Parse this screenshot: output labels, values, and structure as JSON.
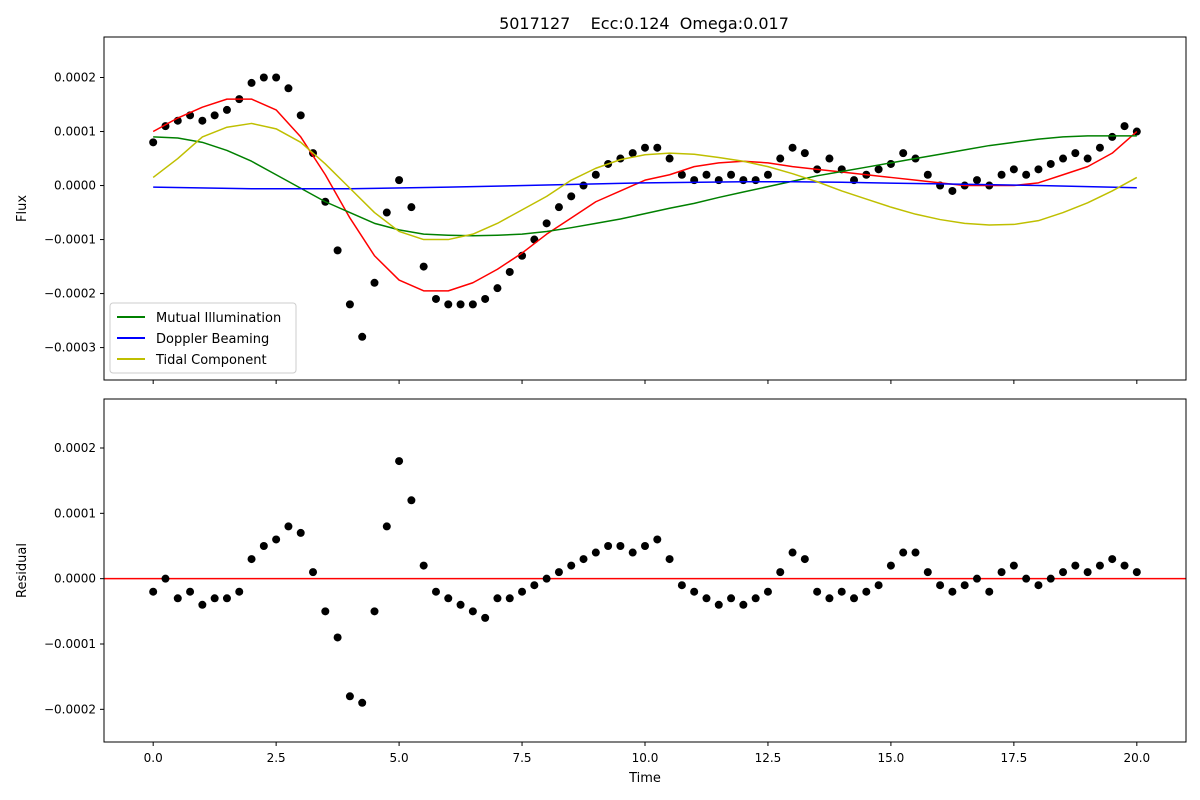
{
  "figure": {
    "title": "5017127    Ecc:0.124  Omega:0.017"
  },
  "chart_data": [
    {
      "type": "scatter",
      "panel": "top",
      "xlabel": "",
      "ylabel": "Flux",
      "xlim": [
        -1.0,
        21.0
      ],
      "ylim": [
        -0.00036,
        0.000275
      ],
      "grid": false,
      "legend_placement": "lower-left",
      "xticks": [
        0.0,
        2.5,
        5.0,
        7.5,
        10.0,
        12.5,
        15.0,
        17.5,
        20.0
      ],
      "xtick_labels_visible": false,
      "yticks": [
        -0.0003,
        -0.0002,
        -0.0001,
        0.0,
        0.0001,
        0.0002
      ],
      "ytick_labels": [
        "−0.0003",
        "−0.0002",
        "−0.0001",
        "0.0000",
        "0.0001",
        "0.0002"
      ],
      "data_color": "#000000",
      "data_points": {
        "x": [
          0.0,
          0.25,
          0.5,
          0.75,
          1.0,
          1.25,
          1.5,
          1.75,
          2.0,
          2.25,
          2.5,
          2.75,
          3.0,
          3.25,
          3.5,
          3.75,
          4.0,
          4.25,
          4.5,
          4.75,
          5.0,
          5.25,
          5.5,
          5.75,
          6.0,
          6.25,
          6.5,
          6.75,
          7.0,
          7.25,
          7.5,
          7.75,
          8.0,
          8.25,
          8.5,
          8.75,
          9.0,
          9.25,
          9.5,
          9.75,
          10.0,
          10.25,
          10.5,
          10.75,
          11.0,
          11.25,
          11.5,
          11.75,
          12.0,
          12.25,
          12.5,
          12.75,
          13.0,
          13.25,
          13.5,
          13.75,
          14.0,
          14.25,
          14.5,
          14.75,
          15.0,
          15.25,
          15.5,
          15.75,
          16.0,
          16.25,
          16.5,
          16.75,
          17.0,
          17.25,
          17.5,
          17.75,
          18.0,
          18.25,
          18.5,
          18.75,
          19.0,
          19.25,
          19.5,
          19.75,
          20.0
        ],
        "y": [
          8e-05,
          0.00011,
          0.00012,
          0.00013,
          0.00012,
          0.00013,
          0.00014,
          0.00016,
          0.00019,
          0.0002,
          0.0002,
          0.00018,
          0.00013,
          6e-05,
          -3e-05,
          -0.00012,
          -0.00022,
          -0.00028,
          -0.00018,
          -5e-05,
          1e-05,
          -4e-05,
          -0.00015,
          -0.00021,
          -0.00022,
          -0.00022,
          -0.00022,
          -0.00021,
          -0.00019,
          -0.00016,
          -0.00013,
          -0.0001,
          -7e-05,
          -4e-05,
          -2e-05,
          0.0,
          2e-05,
          4e-05,
          5e-05,
          6e-05,
          7e-05,
          7e-05,
          5e-05,
          2e-05,
          1e-05,
          2e-05,
          1e-05,
          2e-05,
          1e-05,
          1e-05,
          2e-05,
          5e-05,
          7e-05,
          6e-05,
          3e-05,
          5e-05,
          3e-05,
          1e-05,
          2e-05,
          3e-05,
          4e-05,
          6e-05,
          5e-05,
          2e-05,
          0.0,
          -1e-05,
          0.0,
          1e-05,
          0.0,
          2e-05,
          3e-05,
          2e-05,
          3e-05,
          4e-05,
          5e-05,
          6e-05,
          5e-05,
          7e-05,
          9e-05,
          0.00011,
          0.0001
        ]
      },
      "series": [
        {
          "name": "",
          "color": "#ff0000",
          "x": [
            0.0,
            0.5,
            1.0,
            1.5,
            2.0,
            2.5,
            3.0,
            3.5,
            4.0,
            4.5,
            5.0,
            5.5,
            6.0,
            6.5,
            7.0,
            7.5,
            8.0,
            8.5,
            9.0,
            9.5,
            10.0,
            10.5,
            11.0,
            11.5,
            12.0,
            12.5,
            13.0,
            13.5,
            14.0,
            14.5,
            15.0,
            15.5,
            16.0,
            16.5,
            17.0,
            17.5,
            18.0,
            18.5,
            19.0,
            19.5,
            20.0
          ],
          "y": [
            0.0001,
            0.000125,
            0.000145,
            0.00016,
            0.00016,
            0.00014,
            9e-05,
            2e-05,
            -6e-05,
            -0.00013,
            -0.000175,
            -0.000195,
            -0.000195,
            -0.00018,
            -0.000155,
            -0.000125,
            -9e-05,
            -6e-05,
            -3e-05,
            -1e-05,
            1e-05,
            2e-05,
            3.5e-05,
            4.2e-05,
            4.5e-05,
            4.2e-05,
            3.5e-05,
            3e-05,
            2.5e-05,
            2e-05,
            1.5e-05,
            1e-05,
            5e-06,
            0.0,
            0.0,
            0.0,
            5e-06,
            2e-05,
            3.5e-05,
            6e-05,
            0.0001
          ]
        },
        {
          "name": "Mutual Illumination",
          "color": "#008000",
          "x": [
            0.0,
            0.5,
            1.0,
            1.5,
            2.0,
            2.5,
            3.0,
            3.5,
            4.0,
            4.5,
            5.0,
            5.5,
            6.0,
            6.5,
            7.0,
            7.5,
            8.0,
            8.5,
            9.0,
            9.5,
            10.0,
            10.5,
            11.0,
            11.5,
            12.0,
            12.5,
            13.0,
            13.5,
            14.0,
            14.5,
            15.0,
            15.5,
            16.0,
            16.5,
            17.0,
            17.5,
            18.0,
            18.5,
            19.0,
            19.5,
            20.0
          ],
          "y": [
            9e-05,
            8.8e-05,
            8e-05,
            6.5e-05,
            4.5e-05,
            2e-05,
            -5e-06,
            -3e-05,
            -5e-05,
            -7e-05,
            -8.2e-05,
            -9e-05,
            -9.2e-05,
            -9.3e-05,
            -9.2e-05,
            -9e-05,
            -8.5e-05,
            -7.8e-05,
            -7e-05,
            -6.2e-05,
            -5.2e-05,
            -4.2e-05,
            -3.3e-05,
            -2.2e-05,
            -1.2e-05,
            -2e-06,
            8e-06,
            1.8e-05,
            2.6e-05,
            3.4e-05,
            4.2e-05,
            5e-05,
            5.8e-05,
            6.6e-05,
            7.4e-05,
            8e-05,
            8.6e-05,
            9e-05,
            9.2e-05,
            9.2e-05,
            9.2e-05
          ]
        },
        {
          "name": "Doppler Beaming",
          "color": "#0000ff",
          "x": [
            0.0,
            2.0,
            4.0,
            6.0,
            8.0,
            10.0,
            12.0,
            13.0,
            14.0,
            16.0,
            18.0,
            20.0
          ],
          "y": [
            -3e-06,
            -6e-06,
            -6e-06,
            -3e-06,
            1e-06,
            5e-06,
            7e-06,
            7e-06,
            6e-06,
            3e-06,
            0.0,
            -4e-06
          ]
        },
        {
          "name": "Tidal Component",
          "color": "#bfbf00",
          "x": [
            0.0,
            0.5,
            1.0,
            1.5,
            2.0,
            2.5,
            3.0,
            3.5,
            4.0,
            4.5,
            5.0,
            5.5,
            6.0,
            6.5,
            7.0,
            7.5,
            8.0,
            8.5,
            9.0,
            9.5,
            10.0,
            10.5,
            11.0,
            11.5,
            12.0,
            12.5,
            13.0,
            13.5,
            14.0,
            14.5,
            15.0,
            15.5,
            16.0,
            16.5,
            17.0,
            17.5,
            18.0,
            18.5,
            19.0,
            19.5,
            20.0
          ],
          "y": [
            1.5e-05,
            5e-05,
            9e-05,
            0.000108,
            0.000115,
            0.000105,
            8e-05,
            4e-05,
            -5e-06,
            -5e-05,
            -8.5e-05,
            -0.0001,
            -0.0001,
            -9e-05,
            -7e-05,
            -4.5e-05,
            -2e-05,
            1e-05,
            3.2e-05,
            4.8e-05,
            5.7e-05,
            6e-05,
            5.8e-05,
            5.2e-05,
            4.5e-05,
            3.5e-05,
            2.2e-05,
            7e-06,
            -1e-05,
            -2.5e-05,
            -4e-05,
            -5.3e-05,
            -6.3e-05,
            -7e-05,
            -7.3e-05,
            -7.2e-05,
            -6.5e-05,
            -5e-05,
            -3.2e-05,
            -1e-05,
            1.5e-05
          ]
        }
      ]
    },
    {
      "type": "scatter",
      "panel": "bottom",
      "xlabel": "Time",
      "ylabel": "Residual",
      "xlim": [
        -1.0,
        21.0
      ],
      "ylim": [
        -0.00025,
        0.000275
      ],
      "grid": false,
      "xticks": [
        0.0,
        2.5,
        5.0,
        7.5,
        10.0,
        12.5,
        15.0,
        17.5,
        20.0
      ],
      "xtick_labels": [
        "0.0",
        "2.5",
        "5.0",
        "7.5",
        "10.0",
        "12.5",
        "15.0",
        "17.5",
        "20.0"
      ],
      "yticks": [
        -0.0002,
        -0.0001,
        0.0,
        0.0001,
        0.0002
      ],
      "ytick_labels": [
        "−0.0002",
        "−0.0001",
        "0.0000",
        "0.0001",
        "0.0002"
      ],
      "data_color": "#000000",
      "reference_line": {
        "y": 0.0,
        "color": "#ff0000"
      },
      "data_points": {
        "x": [
          0.0,
          0.25,
          0.5,
          0.75,
          1.0,
          1.25,
          1.5,
          1.75,
          2.0,
          2.25,
          2.5,
          2.75,
          3.0,
          3.25,
          3.5,
          3.75,
          4.0,
          4.25,
          4.5,
          4.75,
          5.0,
          5.25,
          5.5,
          5.75,
          6.0,
          6.25,
          6.5,
          6.75,
          7.0,
          7.25,
          7.5,
          7.75,
          8.0,
          8.25,
          8.5,
          8.75,
          9.0,
          9.25,
          9.5,
          9.75,
          10.0,
          10.25,
          10.5,
          10.75,
          11.0,
          11.25,
          11.5,
          11.75,
          12.0,
          12.25,
          12.5,
          12.75,
          13.0,
          13.25,
          13.5,
          13.75,
          14.0,
          14.25,
          14.5,
          14.75,
          15.0,
          15.25,
          15.5,
          15.75,
          16.0,
          16.25,
          16.5,
          16.75,
          17.0,
          17.25,
          17.5,
          17.75,
          18.0,
          18.25,
          18.5,
          18.75,
          19.0,
          19.25,
          19.5,
          19.75,
          20.0
        ],
        "y": [
          -2e-05,
          0.0,
          -3e-05,
          -2e-05,
          -4e-05,
          -3e-05,
          -3e-05,
          -2e-05,
          3e-05,
          5e-05,
          6e-05,
          8e-05,
          7e-05,
          1e-05,
          -5e-05,
          -9e-05,
          -0.00018,
          -0.00019,
          -5e-05,
          8e-05,
          0.00018,
          0.00012,
          2e-05,
          -2e-05,
          -3e-05,
          -4e-05,
          -5e-05,
          -6e-05,
          -3e-05,
          -3e-05,
          -2e-05,
          -1e-05,
          0.0,
          1e-05,
          2e-05,
          3e-05,
          4e-05,
          5e-05,
          5e-05,
          4e-05,
          5e-05,
          6e-05,
          3e-05,
          -1e-05,
          -2e-05,
          -3e-05,
          -4e-05,
          -3e-05,
          -4e-05,
          -3e-05,
          -2e-05,
          1e-05,
          4e-05,
          3e-05,
          -2e-05,
          -3e-05,
          -2e-05,
          -3e-05,
          -2e-05,
          -1e-05,
          2e-05,
          4e-05,
          4e-05,
          1e-05,
          -1e-05,
          -2e-05,
          -1e-05,
          0.0,
          -2e-05,
          1e-05,
          2e-05,
          0.0,
          -1e-05,
          0.0,
          1e-05,
          2e-05,
          1e-05,
          2e-05,
          3e-05,
          2e-05,
          1e-05
        ]
      }
    }
  ]
}
